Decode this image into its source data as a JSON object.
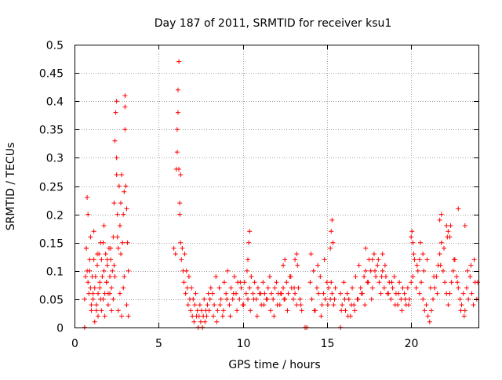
{
  "chart_data": {
    "type": "scatter",
    "title": "Day 187 of 2011, SRMTID for receiver ksu1",
    "xlabel": "GPS time / hours",
    "ylabel": "SRMTID / TECUs",
    "xlim": [
      0,
      24
    ],
    "ylim": [
      0,
      0.5
    ],
    "xticks": [
      0,
      5,
      10,
      15,
      20
    ],
    "yticks": [
      0,
      0.05,
      0.1,
      0.15,
      0.2,
      0.25,
      0.3,
      0.35,
      0.4,
      0.45,
      0.5
    ],
    "xtick_labels": [
      "0",
      "5",
      "10",
      "15",
      "20"
    ],
    "ytick_labels": [
      "0",
      "0.05",
      "0.1",
      "0.15",
      "0.2",
      "0.25",
      "0.3",
      "0.35",
      "0.4",
      "0.45",
      "0.5"
    ],
    "grid": true,
    "marker": "+",
    "color": "#ff0000",
    "series": [
      {
        "name": "SRMTID",
        "x": [
          0.6,
          0.65,
          0.7,
          0.75,
          0.8,
          0.85,
          0.9,
          0.95,
          1.0,
          1.05,
          1.1,
          1.15,
          1.2,
          1.25,
          1.3,
          1.35,
          1.4,
          1.45,
          1.5,
          1.55,
          1.6,
          1.65,
          1.7,
          1.75,
          1.8,
          1.85,
          1.9,
          1.95,
          2.0,
          2.05,
          2.1,
          2.15,
          2.2,
          2.25,
          2.3,
          2.35,
          2.4,
          2.45,
          2.5,
          2.5,
          2.5,
          2.55,
          2.6,
          2.65,
          2.7,
          2.75,
          2.8,
          2.85,
          2.9,
          2.95,
          3.0,
          3.0,
          3.0,
          3.05,
          3.1,
          3.15,
          3.2,
          0.7,
          0.8,
          0.9,
          1.0,
          1.1,
          1.2,
          1.3,
          1.4,
          1.5,
          1.6,
          1.7,
          1.8,
          1.9,
          2.0,
          2.1,
          2.2,
          2.3,
          2.4,
          2.6,
          2.7,
          2.8,
          2.9,
          3.1,
          3.2,
          0.75,
          0.95,
          1.15,
          1.35,
          1.55,
          1.75,
          1.95,
          2.15,
          2.35,
          2.55,
          2.75,
          2.95,
          5.9,
          6.0,
          6.05,
          6.1,
          6.1,
          6.15,
          6.15,
          6.2,
          6.2,
          6.25,
          6.25,
          6.3,
          6.3,
          6.35,
          6.4,
          6.45,
          6.5,
          6.55,
          6.6,
          6.65,
          6.7,
          6.75,
          6.8,
          6.85,
          6.9,
          6.95,
          7.0,
          7.05,
          7.1,
          7.15,
          7.2,
          7.25,
          7.3,
          7.35,
          7.4,
          7.45,
          7.5,
          7.55,
          7.6,
          7.65,
          7.7,
          7.75,
          7.8,
          7.85,
          7.9,
          7.95,
          8.0,
          8.05,
          8.1,
          8.2,
          8.3,
          8.4,
          8.5,
          8.6,
          8.7,
          8.8,
          8.9,
          9.0,
          9.1,
          9.2,
          9.3,
          9.4,
          9.5,
          9.6,
          9.7,
          9.8,
          9.9,
          10.0,
          10.1,
          10.2,
          10.3,
          10.4,
          10.5,
          10.6,
          10.7,
          10.8,
          10.9,
          11.0,
          11.1,
          11.2,
          11.3,
          11.4,
          11.5,
          11.6,
          11.7,
          11.8,
          11.9,
          12.0,
          12.1,
          12.2,
          12.3,
          12.4,
          12.5,
          12.6,
          12.7,
          12.8,
          12.9,
          13.0,
          13.1,
          13.2,
          13.3,
          13.4,
          13.5,
          8.25,
          8.45,
          8.65,
          8.85,
          9.05,
          9.25,
          9.45,
          9.65,
          9.85,
          10.05,
          10.25,
          10.45,
          10.65,
          10.85,
          11.05,
          11.25,
          11.45,
          11.65,
          11.85,
          12.05,
          12.25,
          12.45,
          12.65,
          12.85,
          13.05,
          13.25,
          13.45,
          10.3,
          10.35,
          10.4,
          12.4,
          12.5,
          13.1,
          13.2,
          14.0,
          14.1,
          14.2,
          14.3,
          14.4,
          14.5,
          14.6,
          14.7,
          14.8,
          14.9,
          15.0,
          15.1,
          15.2,
          15.3,
          15.4,
          15.5,
          14.05,
          14.25,
          14.45,
          14.65,
          14.85,
          15.05,
          15.25,
          15.45,
          15.2,
          15.25,
          15.3,
          15.35,
          15.8,
          15.9,
          16.0,
          16.1,
          16.2,
          16.3,
          16.4,
          16.5,
          16.6,
          16.7,
          16.8,
          16.9,
          17.0,
          17.1,
          17.2,
          17.3,
          17.4,
          17.5,
          17.6,
          17.7,
          17.8,
          17.9,
          18.0,
          18.1,
          18.2,
          18.3,
          18.4,
          18.5,
          18.6,
          18.7,
          18.8,
          18.9,
          19.0,
          19.1,
          19.2,
          19.3,
          19.4,
          19.5,
          19.6,
          19.7,
          19.8,
          19.9,
          20.0,
          15.85,
          16.05,
          16.25,
          16.45,
          16.65,
          16.85,
          17.05,
          17.25,
          17.45,
          17.65,
          17.85,
          18.05,
          18.25,
          18.45,
          18.65,
          18.85,
          19.05,
          19.25,
          19.45,
          19.65,
          19.85,
          17.3,
          17.7,
          18.3,
          20.1,
          20.2,
          20.3,
          20.4,
          20.5,
          20.6,
          20.7,
          20.8,
          20.9,
          21.0,
          21.1,
          21.2,
          21.3,
          21.4,
          21.5,
          21.6,
          21.7,
          21.8,
          21.9,
          22.0,
          22.1,
          22.2,
          22.3,
          22.4,
          22.5,
          22.6,
          22.7,
          22.8,
          22.9,
          23.0,
          23.1,
          23.2,
          23.3,
          23.4,
          23.5,
          23.6,
          23.7,
          23.8,
          23.9,
          20.15,
          20.35,
          20.55,
          20.75,
          20.95,
          21.15,
          21.35,
          21.55,
          21.75,
          21.95,
          22.15,
          22.35,
          22.55,
          22.75,
          22.95,
          23.15,
          23.35,
          23.55,
          23.75,
          23.95,
          20.0,
          20.05,
          20.1,
          20.5,
          20.7,
          21.7,
          21.8,
          22.1,
          22.2,
          22.3,
          22.8,
          23.2,
          0.6,
          13.7,
          13.8,
          15.8
        ],
        "y": [
          0.05,
          0.09,
          0.14,
          0.1,
          0.2,
          0.06,
          0.1,
          0.07,
          0.03,
          0.09,
          0.05,
          0.12,
          0.07,
          0.09,
          0.03,
          0.11,
          0.06,
          0.13,
          0.08,
          0.05,
          0.12,
          0.09,
          0.15,
          0.1,
          0.06,
          0.13,
          0.08,
          0.11,
          0.06,
          0.14,
          0.09,
          0.12,
          0.07,
          0.1,
          0.16,
          0.22,
          0.33,
          0.38,
          0.4,
          0.3,
          0.27,
          0.2,
          0.14,
          0.25,
          0.18,
          0.22,
          0.27,
          0.15,
          0.2,
          0.24,
          0.39,
          0.35,
          0.41,
          0.25,
          0.21,
          0.15,
          0.1,
          0.14,
          0.08,
          0.12,
          0.04,
          0.06,
          0.01,
          0.04,
          0.02,
          0.07,
          0.03,
          0.05,
          0.02,
          0.08,
          0.04,
          0.06,
          0.03,
          0.05,
          0.09,
          0.03,
          0.06,
          0.02,
          0.07,
          0.04,
          0.02,
          0.23,
          0.16,
          0.17,
          0.13,
          0.15,
          0.18,
          0.12,
          0.14,
          0.11,
          0.16,
          0.13,
          0.09,
          0.14,
          0.13,
          0.28,
          0.31,
          0.35,
          0.38,
          0.42,
          0.47,
          0.28,
          0.22,
          0.2,
          0.15,
          0.27,
          0.12,
          0.14,
          0.1,
          0.08,
          0.13,
          0.06,
          0.1,
          0.07,
          0.04,
          0.09,
          0.05,
          0.03,
          0.07,
          0.02,
          0.05,
          0.01,
          0.04,
          0.06,
          0.02,
          0.03,
          0.0,
          0.02,
          0.04,
          0.01,
          0.03,
          0.0,
          0.02,
          0.05,
          0.01,
          0.03,
          0.02,
          0.04,
          0.06,
          0.03,
          0.05,
          0.07,
          0.06,
          0.04,
          0.09,
          0.03,
          0.07,
          0.05,
          0.02,
          0.08,
          0.06,
          0.1,
          0.04,
          0.07,
          0.05,
          0.09,
          0.06,
          0.08,
          0.05,
          0.07,
          0.04,
          0.08,
          0.06,
          0.05,
          0.07,
          0.09,
          0.06,
          0.08,
          0.05,
          0.07,
          0.06,
          0.04,
          0.08,
          0.06,
          0.05,
          0.07,
          0.09,
          0.06,
          0.05,
          0.07,
          0.08,
          0.06,
          0.04,
          0.06,
          0.07,
          0.05,
          0.08,
          0.06,
          0.09,
          0.07,
          0.05,
          0.06,
          0.04,
          0.07,
          0.05,
          0.03,
          0.02,
          0.01,
          0.04,
          0.03,
          0.05,
          0.02,
          0.06,
          0.03,
          0.08,
          0.04,
          0.1,
          0.03,
          0.05,
          0.02,
          0.06,
          0.04,
          0.05,
          0.03,
          0.02,
          0.04,
          0.06,
          0.05,
          0.03,
          0.09,
          0.07,
          0.11,
          0.04,
          0.12,
          0.15,
          0.17,
          0.11,
          0.12,
          0.12,
          0.13,
          0.08,
          0.05,
          0.1,
          0.03,
          0.07,
          0.06,
          0.09,
          0.04,
          0.06,
          0.05,
          0.08,
          0.07,
          0.05,
          0.06,
          0.04,
          0.07,
          0.13,
          0.03,
          0.11,
          0.02,
          0.12,
          0.04,
          0.08,
          0.05,
          0.14,
          0.17,
          0.19,
          0.15,
          0.06,
          0.04,
          0.08,
          0.03,
          0.06,
          0.05,
          0.02,
          0.07,
          0.04,
          0.09,
          0.05,
          0.11,
          0.07,
          0.06,
          0.09,
          0.1,
          0.08,
          0.12,
          0.1,
          0.07,
          0.13,
          0.09,
          0.11,
          0.08,
          0.06,
          0.1,
          0.07,
          0.09,
          0.06,
          0.08,
          0.05,
          0.07,
          0.09,
          0.06,
          0.04,
          0.08,
          0.05,
          0.07,
          0.06,
          0.04,
          0.07,
          0.05,
          0.08,
          0.03,
          0.05,
          0.02,
          0.04,
          0.03,
          0.05,
          0.06,
          0.04,
          0.08,
          0.05,
          0.1,
          0.12,
          0.09,
          0.11,
          0.06,
          0.08,
          0.04,
          0.06,
          0.03,
          0.05,
          0.04,
          0.14,
          0.12,
          0.13,
          0.09,
          0.12,
          0.07,
          0.1,
          0.06,
          0.08,
          0.05,
          0.03,
          0.04,
          0.02,
          0.01,
          0.03,
          0.05,
          0.07,
          0.09,
          0.11,
          0.13,
          0.15,
          0.1,
          0.08,
          0.06,
          0.04,
          0.06,
          0.08,
          0.1,
          0.12,
          0.09,
          0.07,
          0.05,
          0.04,
          0.06,
          0.03,
          0.07,
          0.05,
          0.09,
          0.06,
          0.04,
          0.08,
          0.05,
          0.13,
          0.11,
          0.15,
          0.1,
          0.12,
          0.07,
          0.09,
          0.06,
          0.11,
          0.14,
          0.16,
          0.18,
          0.12,
          0.08,
          0.03,
          0.02,
          0.1,
          0.11,
          0.12,
          0.08,
          0.16,
          0.17,
          0.15,
          0.12,
          0.13,
          0.19,
          0.2,
          0.18,
          0.17,
          0.16,
          0.21,
          0.18,
          0.0,
          0.0,
          0.0,
          0.0
        ]
      }
    ]
  }
}
